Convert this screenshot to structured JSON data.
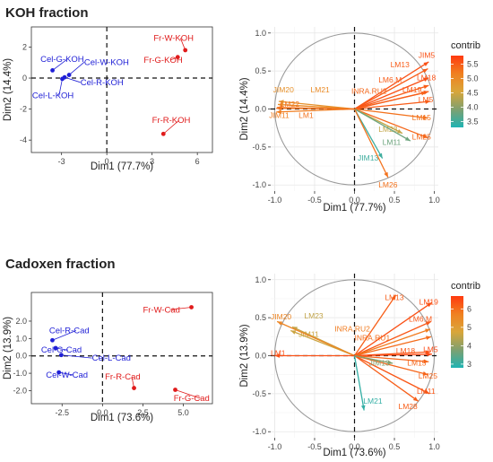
{
  "sections": [
    {
      "title": "KOH fraction"
    },
    {
      "title": "Cadoxen fraction"
    }
  ],
  "colors": {
    "group_cel": "#1f1fd6",
    "group_fr": "#e01b1b",
    "gradient": [
      "#1fb3b3",
      "#7fa070",
      "#d9a63a",
      "#f08020",
      "#ff3a10"
    ],
    "circle": "#9a9a9a",
    "grid_bg": "#ffffff",
    "grid_line": "#e6e6e6"
  },
  "chart_data": [
    {
      "type": "scatter",
      "title": "KOH fraction",
      "xlabel": "Dim1 (77.7%)",
      "ylabel": "Dim2 (14.4%)",
      "xlim": [
        -5,
        7
      ],
      "ylim": [
        -4.8,
        3.3
      ],
      "xticks": [
        -3,
        0,
        3,
        6
      ],
      "yticks": [
        -4,
        -2,
        0,
        2
      ],
      "points": [
        {
          "label": "Cel-G-KOH",
          "x": -3.6,
          "y": 0.5,
          "group": "Cel",
          "lx": -4.4,
          "ly": 1.05
        },
        {
          "label": "Cel-W-KOH",
          "x": -2.5,
          "y": 0.2,
          "group": "Cel",
          "lx": -1.5,
          "ly": 0.85
        },
        {
          "label": "Cel-R-KOH",
          "x": -2.8,
          "y": 0.05,
          "group": "Cel",
          "lx": -1.75,
          "ly": -0.45
        },
        {
          "label": "Cel-L-KOH",
          "x": -2.95,
          "y": -0.05,
          "group": "Cel",
          "lx": -4.95,
          "ly": -1.3
        },
        {
          "label": "Fr-W-KOH",
          "x": 5.2,
          "y": 1.8,
          "group": "Fr",
          "lx": 3.1,
          "ly": 2.4
        },
        {
          "label": "Fr-G-KOH",
          "x": 4.7,
          "y": 1.35,
          "group": "Fr",
          "lx": 2.45,
          "ly": 1.0
        },
        {
          "label": "Fr-R-KOH",
          "x": 3.75,
          "y": -3.6,
          "group": "Fr",
          "lx": 3.0,
          "ly": -2.9
        }
      ]
    },
    {
      "type": "variables",
      "title": "KOH fraction",
      "xlabel": "Dim1 (77.7%)",
      "ylabel": "Dim2 (14.4%)",
      "xlim": [
        -1.05,
        1.05
      ],
      "ylim": [
        -1.08,
        1.08
      ],
      "xticks": [
        -1.0,
        -0.5,
        0.0,
        0.5,
        1.0
      ],
      "yticks": [
        -1.0,
        -0.5,
        0.0,
        0.5,
        1.0
      ],
      "legend_title": "contrib",
      "legend_ticks": [
        3.5,
        4.0,
        4.5,
        5.0,
        5.5
      ],
      "legend_range": [
        3.3,
        5.8
      ],
      "arrows": [
        {
          "label": "JIM5",
          "x": 0.93,
          "y": 0.62,
          "contrib": 5.6,
          "lx": 0.8,
          "ly": 0.67
        },
        {
          "label": "LM13",
          "x": 0.92,
          "y": 0.53,
          "contrib": 5.5,
          "lx": 0.45,
          "ly": 0.55
        },
        {
          "label": "LM18",
          "x": 0.93,
          "y": 0.41,
          "contrib": 5.6,
          "lx": 0.78,
          "ly": 0.38
        },
        {
          "label": "LM6.M",
          "x": 0.93,
          "y": 0.31,
          "contrib": 5.5,
          "lx": 0.3,
          "ly": 0.35
        },
        {
          "label": "INRA.RU2",
          "x": 0.9,
          "y": 0.22,
          "contrib": 5.4,
          "lx": -0.04,
          "ly": 0.2
        },
        {
          "label": "LM19",
          "x": 0.93,
          "y": 0.23,
          "contrib": 5.5,
          "lx": 0.6,
          "ly": 0.22
        },
        {
          "label": "LM5",
          "x": 0.95,
          "y": 0.1,
          "contrib": 5.5,
          "lx": 0.8,
          "ly": 0.09
        },
        {
          "label": "LM15",
          "x": 0.92,
          "y": -0.12,
          "contrib": 5.3,
          "lx": 0.72,
          "ly": -0.15
        },
        {
          "label": "LM25",
          "x": 0.92,
          "y": -0.38,
          "contrib": 5.4,
          "lx": 0.72,
          "ly": -0.4
        },
        {
          "label": "LM23",
          "x": 0.6,
          "y": -0.32,
          "contrib": 4.4,
          "lx": 0.3,
          "ly": -0.3
        },
        {
          "label": "LM11",
          "x": 0.7,
          "y": -0.42,
          "contrib": 3.8,
          "lx": 0.35,
          "ly": -0.47
        },
        {
          "label": "JIM13",
          "x": 0.35,
          "y": -0.65,
          "contrib": 3.5,
          "lx": 0.04,
          "ly": -0.68
        },
        {
          "label": "LM26",
          "x": 0.42,
          "y": -0.9,
          "contrib": 5.3,
          "lx": 0.3,
          "ly": -1.03
        },
        {
          "label": "JIM20",
          "x": -0.95,
          "y": 0.1,
          "contrib": 4.9,
          "lx": -1.02,
          "ly": 0.22
        },
        {
          "label": "LM21",
          "x": -0.96,
          "y": 0.06,
          "contrib": 5.0,
          "lx": -0.55,
          "ly": 0.22
        },
        {
          "label": "LM22",
          "x": -0.97,
          "y": 0.02,
          "contrib": 5.3,
          "lx": -0.93,
          "ly": 0.03
        },
        {
          "label": "JIM11",
          "x": -0.98,
          "y": -0.04,
          "contrib": 5.2,
          "lx": -1.07,
          "ly": -0.12
        },
        {
          "label": "LM1",
          "x": -0.98,
          "y": 0.01,
          "contrib": 5.3,
          "lx": -0.7,
          "ly": -0.12
        }
      ]
    },
    {
      "type": "scatter",
      "title": "Cadoxen fraction",
      "xlabel": "Dim1 (73.6%)",
      "ylabel": "Dim2 (13.9%)",
      "xlim": [
        -4.4,
        6.8
      ],
      "ylim": [
        -2.75,
        3.65
      ],
      "xticks": [
        -2.5,
        0.0,
        2.5,
        5.0
      ],
      "yticks": [
        -2,
        -1,
        0,
        1,
        2
      ],
      "points": [
        {
          "label": "Cel-R-Cad",
          "x": -3.1,
          "y": 0.9,
          "group": "Cel",
          "lx": -3.3,
          "ly": 1.3
        },
        {
          "label": "Cel-G-Cad",
          "x": -2.9,
          "y": 0.45,
          "group": "Cel",
          "lx": -3.8,
          "ly": 0.18
        },
        {
          "label": "Cel-L-Cad",
          "x": -2.55,
          "y": 0.05,
          "group": "Cel",
          "lx": -0.65,
          "ly": -0.28
        },
        {
          "label": "Cel-W-Cad",
          "x": -2.7,
          "y": -0.95,
          "group": "Cel",
          "lx": -3.5,
          "ly": -1.25
        },
        {
          "label": "Fr-W-Cad",
          "x": 5.5,
          "y": 2.8,
          "group": "Fr",
          "lx": 2.5,
          "ly": 2.5
        },
        {
          "label": "Fr-R-Cad",
          "x": 1.95,
          "y": -1.85,
          "group": "Fr",
          "lx": 0.15,
          "ly": -1.35
        },
        {
          "label": "Fr-G-Cad",
          "x": 4.5,
          "y": -1.95,
          "group": "Fr",
          "lx": 4.4,
          "ly": -2.6
        }
      ]
    },
    {
      "type": "variables",
      "title": "Cadoxen fraction",
      "xlabel": "Dim1 (73.6%)",
      "ylabel": "Dim2 (13.9%)",
      "xlim": [
        -1.05,
        1.05
      ],
      "ylim": [
        -1.08,
        1.08
      ],
      "xticks": [
        -1.0,
        -0.5,
        0.0,
        0.5,
        1.0
      ],
      "yticks": [
        -1.0,
        -0.5,
        0.0,
        0.5,
        1.0
      ],
      "legend_title": "contrib",
      "legend_ticks": [
        3,
        4,
        5,
        6
      ],
      "legend_range": [
        2.8,
        6.7
      ],
      "arrows": [
        {
          "label": "LM13",
          "x": 0.52,
          "y": 0.8,
          "contrib": 6.2,
          "lx": 0.38,
          "ly": 0.73
        },
        {
          "label": "LM19",
          "x": 0.97,
          "y": 0.7,
          "contrib": 6.4,
          "lx": 0.81,
          "ly": 0.67
        },
        {
          "label": "LM6.M",
          "x": 0.96,
          "y": 0.45,
          "contrib": 6.3,
          "lx": 0.68,
          "ly": 0.45
        },
        {
          "label": "INRA.RU2",
          "x": 0.95,
          "y": 0.35,
          "contrib": 5.8,
          "lx": -0.25,
          "ly": 0.32
        },
        {
          "label": "INRA.RU1",
          "x": 0.96,
          "y": 0.25,
          "contrib": 6.0,
          "lx": 0.0,
          "ly": 0.2
        },
        {
          "label": "LM18",
          "x": 0.95,
          "y": 0.05,
          "contrib": 6.3,
          "lx": 0.52,
          "ly": 0.03
        },
        {
          "label": "LM5",
          "x": 0.97,
          "y": 0.02,
          "contrib": 6.5,
          "lx": 0.86,
          "ly": 0.05
        },
        {
          "label": "LM15",
          "x": 0.93,
          "y": -0.08,
          "contrib": 6.1,
          "lx": 0.66,
          "ly": -0.13
        },
        {
          "label": "LM25",
          "x": 0.92,
          "y": -0.25,
          "contrib": 6.1,
          "lx": 0.8,
          "ly": -0.3
        },
        {
          "label": "LM11",
          "x": 0.94,
          "y": -0.5,
          "contrib": 6.3,
          "lx": 0.78,
          "ly": -0.5
        },
        {
          "label": "LM28",
          "x": 0.8,
          "y": -0.6,
          "contrib": 6.2,
          "lx": 0.55,
          "ly": -0.7
        },
        {
          "label": "JIM13",
          "x": 0.48,
          "y": -0.1,
          "contrib": 3.8,
          "lx": 0.18,
          "ly": -0.13
        },
        {
          "label": "LM21",
          "x": 0.12,
          "y": -0.72,
          "contrib": 3.0,
          "lx": 0.11,
          "ly": -0.63
        },
        {
          "label": "LM23",
          "x": -0.78,
          "y": 0.38,
          "contrib": 4.5,
          "lx": -0.63,
          "ly": 0.49
        },
        {
          "label": "JIM11",
          "x": -0.8,
          "y": 0.33,
          "contrib": 4.6,
          "lx": -0.7,
          "ly": 0.25
        },
        {
          "label": "JIM20",
          "x": -0.97,
          "y": 0.45,
          "contrib": 5.6,
          "lx": -1.05,
          "ly": 0.48
        },
        {
          "label": "LM1",
          "x": -1.0,
          "y": 0.0,
          "contrib": 6.4,
          "lx": -1.05,
          "ly": 0.0
        }
      ]
    }
  ]
}
